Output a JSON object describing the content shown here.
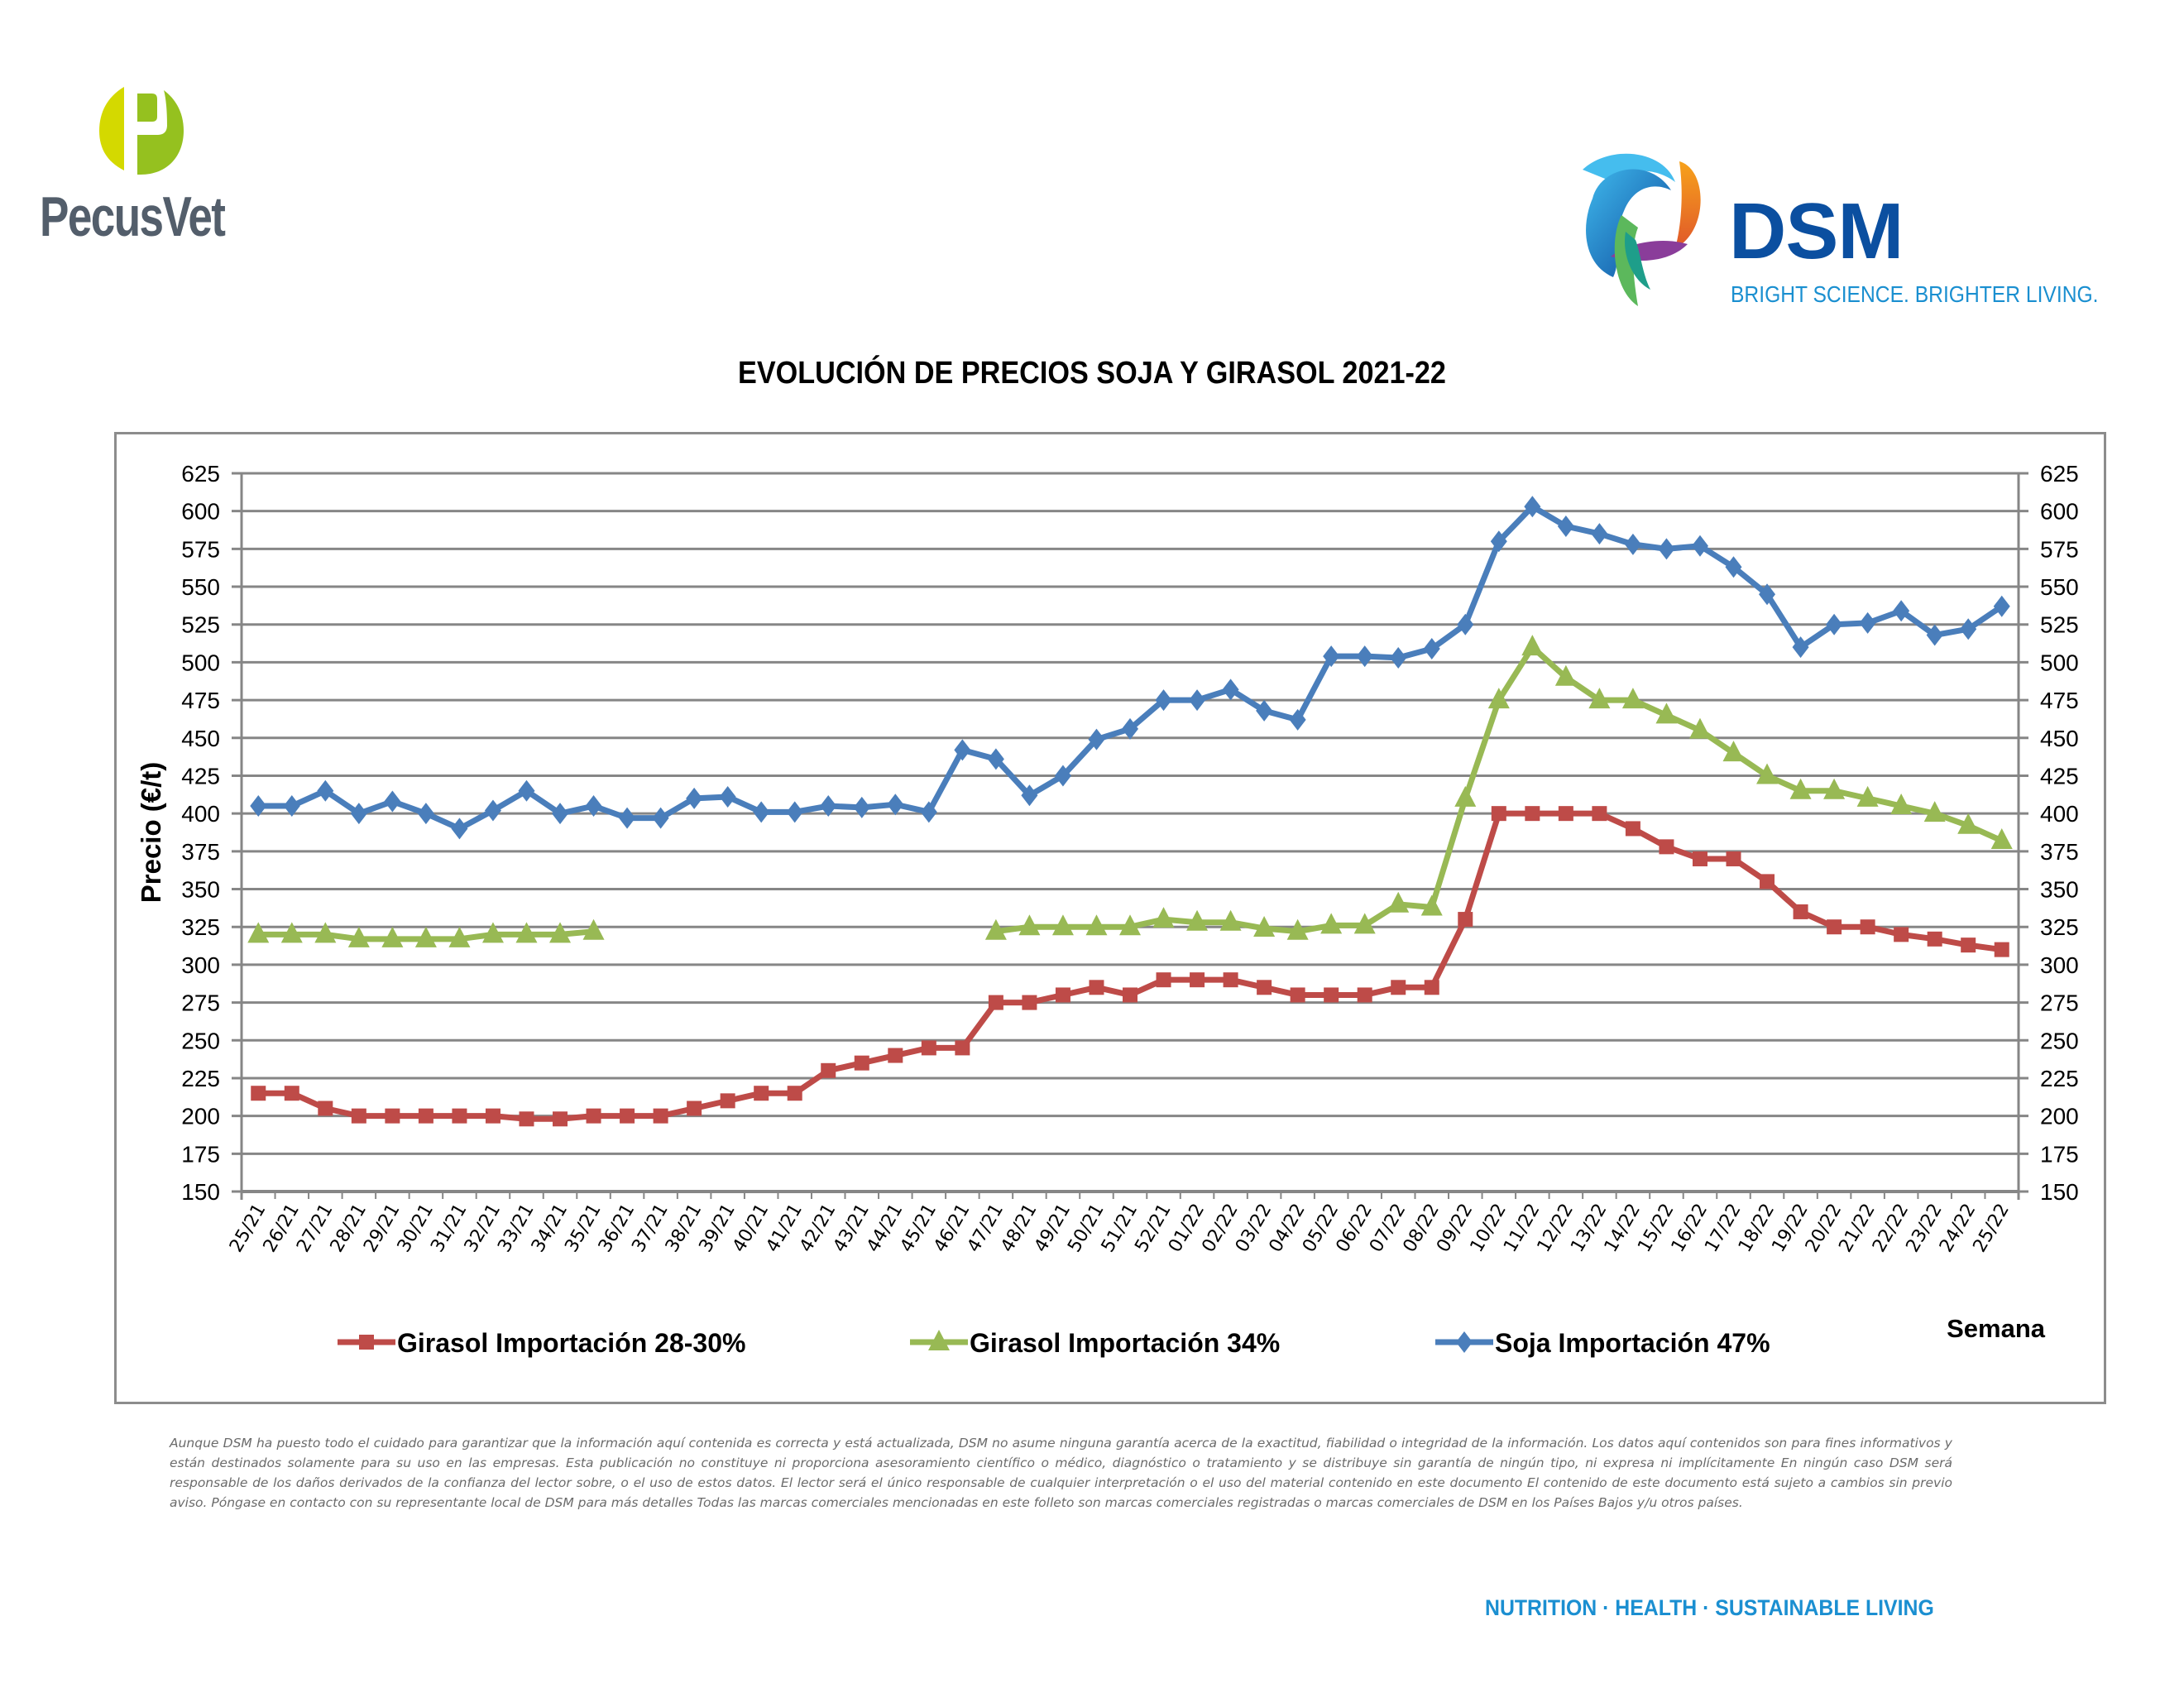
{
  "header": {
    "left_logo_text": "PecusVet",
    "right_logo_text": "DSM",
    "right_logo_tagline": "BRIGHT SCIENCE. BRIGHTER LIVING."
  },
  "colors": {
    "soja": "#4a7ebb",
    "girasol_28_30": "#be4b48",
    "girasol_34": "#98b954",
    "grid": "#868686",
    "pecus_lime": "#d4d900",
    "pecus_green": "#95c11f",
    "dsm_blue": "#0b4fa0",
    "tag_blue": "#1b8fd1"
  },
  "chart_data": {
    "type": "line",
    "title": "EVOLUCIÓN DE PRECIOS SOJA Y GIRASOL 2021-22",
    "xlabel": "Semana",
    "ylabel": "Precio (€/t)",
    "ylim": [
      150,
      625
    ],
    "ytick_step": 25,
    "yticks": [
      "150",
      "175",
      "200",
      "225",
      "250",
      "275",
      "300",
      "325",
      "350",
      "375",
      "400",
      "425",
      "450",
      "475",
      "500",
      "525",
      "550",
      "575",
      "600",
      "625"
    ],
    "secondary_y_axis": true,
    "grid": true,
    "legend_position": "bottom",
    "categories": [
      "25/21",
      "26/21",
      "27/21",
      "28/21",
      "29/21",
      "30/21",
      "31/21",
      "32/21",
      "33/21",
      "34/21",
      "35/21",
      "36/21",
      "37/21",
      "38/21",
      "39/21",
      "40/21",
      "41/21",
      "42/21",
      "43/21",
      "44/21",
      "45/21",
      "46/21",
      "47/21",
      "48/21",
      "49/21",
      "50/21",
      "51/21",
      "52/21",
      "01/22",
      "02/22",
      "03/22",
      "04/22",
      "05/22",
      "06/22",
      "07/22",
      "08/22",
      "09/22",
      "10/22",
      "11/22",
      "12/22",
      "13/22",
      "14/22",
      "15/22",
      "16/22",
      "17/22",
      "18/22",
      "19/22",
      "20/22",
      "21/22",
      "22/22",
      "23/22",
      "24/22",
      "25/22"
    ],
    "series": [
      {
        "name": "Girasol Importación 28-30%",
        "marker": "square",
        "color": "#be4b48",
        "values": [
          215,
          215,
          205,
          200,
          200,
          200,
          200,
          200,
          198,
          198,
          200,
          200,
          200,
          205,
          210,
          215,
          215,
          230,
          235,
          240,
          245,
          245,
          275,
          275,
          280,
          285,
          280,
          290,
          290,
          290,
          285,
          280,
          280,
          280,
          285,
          285,
          330,
          400,
          400,
          400,
          400,
          390,
          378,
          370,
          370,
          355,
          335,
          325,
          325,
          320,
          317,
          313,
          310
        ]
      },
      {
        "name": "Girasol Importación 34%",
        "marker": "triangle",
        "color": "#98b954",
        "values": [
          320,
          320,
          320,
          317,
          317,
          317,
          317,
          320,
          320,
          320,
          322,
          null,
          null,
          null,
          null,
          null,
          null,
          null,
          null,
          null,
          null,
          null,
          322,
          325,
          325,
          325,
          325,
          330,
          328,
          328,
          324,
          322,
          326,
          326,
          340,
          338,
          410,
          475,
          510,
          490,
          475,
          475,
          465,
          455,
          440,
          425,
          415,
          415,
          410,
          405,
          400,
          392,
          382
        ]
      },
      {
        "name": "Soja Importación 47%",
        "marker": "diamond",
        "color": "#4a7ebb",
        "values": [
          405,
          405,
          415,
          400,
          408,
          400,
          390,
          402,
          415,
          400,
          405,
          397,
          397,
          410,
          411,
          401,
          401,
          405,
          404,
          406,
          401,
          442,
          436,
          412,
          425,
          449,
          456,
          475,
          475,
          482,
          468,
          462,
          504,
          504,
          503,
          509,
          525,
          580,
          603,
          590,
          585,
          578,
          575,
          577,
          563,
          545,
          510,
          525,
          526,
          534,
          518,
          522,
          537
        ]
      }
    ]
  },
  "disclaimer": "Aunque DSM ha puesto todo el cuidado para garantizar que la información aquí contenida es correcta y está actualizada, DSM no asume ninguna garantía acerca de la exactitud, fiabilidad o integridad de la información. Los datos aquí contenidos son para fines informativos y están destinados solamente para su uso en las empresas. Esta publicación no constituye ni proporciona asesoramiento científico o médico, diagnóstico o tratamiento y se distribuye sin garantía de ningún tipo, ni expresa ni implícitamente En ningún caso DSM será responsable de los daños derivados de la confianza del lector sobre, o el uso de estos datos. El lector será el único responsable de cualquier interpretación o el uso del material contenido en este documento El contenido de este documento está sujeto a cambios sin previo aviso. Póngase en contacto con su representante local de DSM para más detalles Todas las marcas comerciales mencionadas en este folleto son marcas comerciales registradas o marcas comerciales de DSM en los Países Bajos y/u otros países.",
  "footer": {
    "tagline": "NUTRITION  ·  HEALTH  ·  SUSTAINABLE LIVING"
  }
}
